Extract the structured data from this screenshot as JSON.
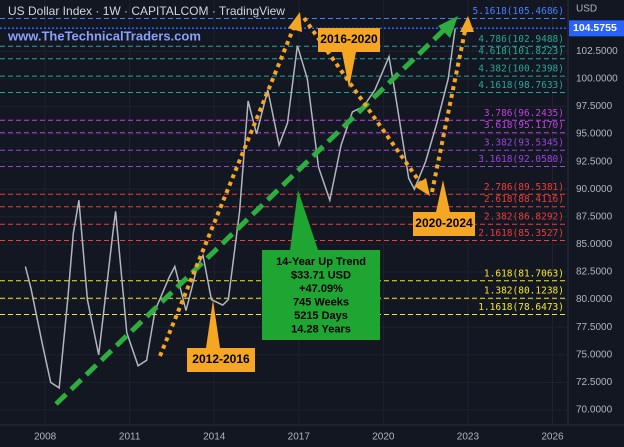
{
  "chart_data": {
    "type": "line",
    "title": "US Dollar Index · 1W · CAPITALCOM · TradingView",
    "watermark": "www.TheTechnicalTraders.com",
    "currency": "USD",
    "current_price": 104.5755,
    "xlim": [
      2006.4,
      2026.55
    ],
    "ylim": [
      68.64,
      107.14
    ],
    "xticks": [
      2008,
      2011,
      2014,
      2017,
      2020,
      2023,
      2026
    ],
    "yticks": [
      {
        "value": 70,
        "label": "70.0000"
      },
      {
        "value": 72.5,
        "label": "72.5000"
      },
      {
        "value": 75,
        "label": "75.0000"
      },
      {
        "value": 77.5,
        "label": "77.5000"
      },
      {
        "value": 80,
        "label": "80.0000"
      },
      {
        "value": 82.5,
        "label": "82.5000"
      },
      {
        "value": 85,
        "label": "85.0000"
      },
      {
        "value": 87.5,
        "label": "87.5000"
      },
      {
        "value": 90,
        "label": "90.0000"
      },
      {
        "value": 92.5,
        "label": "92.5000"
      },
      {
        "value": 95,
        "label": "95.0000"
      },
      {
        "value": 97.5,
        "label": "97.5000"
      },
      {
        "value": 100,
        "label": "100.0000"
      },
      {
        "value": 102.5,
        "label": "102.5000"
      }
    ],
    "fib_levels": [
      {
        "value": 105.4686,
        "label": "5.1618(105.4686)",
        "color": "#4a7dff"
      },
      {
        "value": 102.9488,
        "label": "4.786(102.9488)",
        "color": "#26a69a"
      },
      {
        "value": 101.8223,
        "label": "4.618(101.8223)",
        "color": "#26a69a"
      },
      {
        "value": 100.2398,
        "label": "4.382(100.2398)",
        "color": "#26a69a"
      },
      {
        "value": 98.7633,
        "label": "4.1618(98.7633)",
        "color": "#26a69a"
      },
      {
        "value": 96.2435,
        "label": "3.786(96.2435)",
        "color": "#c040e0"
      },
      {
        "value": 95.117,
        "label": "3.618(95.1170)",
        "color": "#c040e0"
      },
      {
        "value": 93.5345,
        "label": "3.382(93.5345)",
        "color": "#9c40e0"
      },
      {
        "value": 92.058,
        "label": "3.1618(92.0580)",
        "color": "#9c40e0"
      },
      {
        "value": 89.5381,
        "label": "2.786(89.5381)",
        "color": "#ef3b3b"
      },
      {
        "value": 88.4116,
        "label": "2.618(88.4116)",
        "color": "#ef3b3b"
      },
      {
        "value": 86.8292,
        "label": "2.382(86.8292)",
        "color": "#ef3b3b"
      },
      {
        "value": 85.3527,
        "label": "2.1618(85.3527)",
        "color": "#ef3b3b"
      },
      {
        "value": 81.7063,
        "label": "1.618(81.7063)",
        "color": "#f5e625"
      },
      {
        "value": 80.1238,
        "label": "1.382(80.1238)",
        "color": "#f5e625"
      },
      {
        "value": 78.6473,
        "label": "1.1618(78.6473)",
        "color": "#f5e625"
      }
    ],
    "annotations": [
      "2016-2020",
      "2012-2016",
      "2020-2024"
    ],
    "trend_box": [
      "14-Year Up Trend",
      "$33.71 USD",
      "+47.09%",
      "745 Weeks",
      "5215 Days",
      "14.28 Years"
    ],
    "series": [
      {
        "name": "US Dollar Index",
        "color": "#b2b5be",
        "x": [
          2007.3,
          2007.5,
          2007.9,
          2008.2,
          2008.5,
          2008.8,
          2009.0,
          2009.2,
          2009.5,
          2009.9,
          2010.4,
          2010.5,
          2010.9,
          2011.3,
          2011.6,
          2011.9,
          2012.4,
          2012.6,
          2013.0,
          2013.4,
          2013.6,
          2013.9,
          2014.3,
          2014.5,
          2014.9,
          2015.2,
          2015.5,
          2015.9,
          2016.3,
          2016.6,
          2016.95,
          2017.3,
          2017.7,
          2018.1,
          2018.5,
          2018.9,
          2019.3,
          2019.7,
          2020.2,
          2020.4,
          2020.9,
          2021.1,
          2021.5,
          2021.9,
          2022.3,
          2022.55
        ],
        "values": [
          83,
          81,
          76,
          72.5,
          72,
          80,
          86,
          89,
          80,
          75,
          86,
          88,
          77,
          74,
          74.5,
          79,
          82,
          83,
          79,
          83,
          84,
          80,
          79.5,
          80,
          88,
          98,
          95,
          99,
          94,
          96,
          103,
          100,
          92,
          89,
          94,
          97,
          97.5,
          99,
          102,
          99,
          91,
          90,
          92.5,
          96,
          100,
          104.5755
        ]
      }
    ]
  }
}
